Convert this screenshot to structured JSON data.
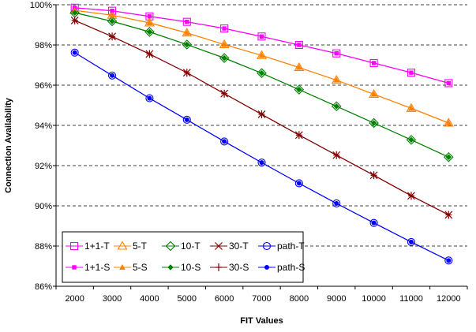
{
  "chart_data": {
    "type": "line",
    "title": "",
    "xlabel": "FIT Values",
    "ylabel": "Connection Availability",
    "x": [
      2000,
      3000,
      4000,
      5000,
      6000,
      7000,
      8000,
      9000,
      10000,
      11000,
      12000
    ],
    "x_tick_labels": [
      "2000",
      "3000",
      "4000",
      "5000",
      "6000",
      "7000",
      "8000",
      "9000",
      "10000",
      "11000",
      "12000"
    ],
    "ylim": [
      86,
      100
    ],
    "y_ticks": [
      86,
      88,
      90,
      92,
      94,
      96,
      98,
      100
    ],
    "y_tick_labels": [
      "86%",
      "88%",
      "90%",
      "92%",
      "94%",
      "96%",
      "98%",
      "100%"
    ],
    "grid": "horizontal dashed",
    "legend_position": "bottom-left",
    "series": [
      {
        "name": "1+1-T",
        "color": "#ff00ff",
        "marker": "square-open",
        "values": [
          99.85,
          99.7,
          99.42,
          99.15,
          98.82,
          98.42,
          98.0,
          97.58,
          97.1,
          96.62,
          96.1
        ]
      },
      {
        "name": "5-T",
        "color": "#ff8000",
        "marker": "triangle-open",
        "values": [
          99.72,
          99.48,
          99.1,
          98.6,
          98.02,
          97.48,
          96.88,
          96.25,
          95.55,
          94.85,
          94.12
        ]
      },
      {
        "name": "10-T",
        "color": "#008000",
        "marker": "diamond-open",
        "values": [
          99.6,
          99.18,
          98.65,
          98.02,
          97.35,
          96.6,
          95.78,
          94.95,
          94.12,
          93.28,
          92.42
        ]
      },
      {
        "name": "30-T",
        "color": "#800000",
        "marker": "x",
        "values": [
          99.22,
          98.42,
          97.55,
          96.62,
          95.58,
          94.55,
          93.52,
          92.52,
          91.52,
          90.5,
          89.55
        ]
      },
      {
        "name": "path-T",
        "color": "#0000ff",
        "marker": "circle-open",
        "values": [
          97.62,
          96.48,
          95.35,
          94.28,
          93.2,
          92.15,
          91.12,
          90.12,
          89.15,
          88.2,
          87.28
        ]
      },
      {
        "name": "1+1-S",
        "color": "#ff00ff",
        "marker": "square-filled",
        "values": [
          99.85,
          99.7,
          99.42,
          99.15,
          98.82,
          98.42,
          98.0,
          97.58,
          97.1,
          96.62,
          96.1
        ]
      },
      {
        "name": "5-S",
        "color": "#ff8000",
        "marker": "triangle-filled",
        "values": [
          99.72,
          99.48,
          99.1,
          98.6,
          98.02,
          97.48,
          96.88,
          96.25,
          95.55,
          94.85,
          94.12
        ]
      },
      {
        "name": "10-S",
        "color": "#008000",
        "marker": "diamond-filled",
        "values": [
          99.6,
          99.18,
          98.65,
          98.02,
          97.35,
          96.6,
          95.78,
          94.95,
          94.12,
          93.28,
          92.42
        ]
      },
      {
        "name": "30-S",
        "color": "#800000",
        "marker": "plus",
        "values": [
          99.22,
          98.42,
          97.55,
          96.62,
          95.58,
          94.55,
          93.52,
          92.52,
          91.52,
          90.5,
          89.55
        ]
      },
      {
        "name": "path-S",
        "color": "#0000ff",
        "marker": "circle-filled",
        "values": [
          97.62,
          96.48,
          95.35,
          94.28,
          93.2,
          92.15,
          91.12,
          90.12,
          89.15,
          88.2,
          87.28
        ]
      }
    ]
  }
}
